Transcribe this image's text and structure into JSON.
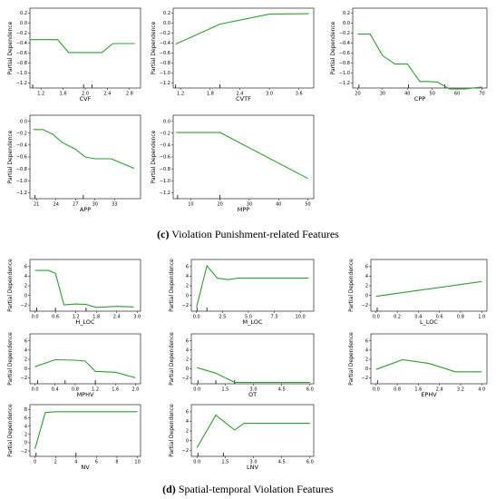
{
  "captions": {
    "c": {
      "letter": "(c)",
      "text": " Violation Punishment-related Features"
    },
    "d": {
      "letter": "(d)",
      "text": " Spatial-temporal Violation Features"
    }
  },
  "colors": {
    "line": "#2ca02c",
    "axis": "#000000",
    "rug": "#000000"
  },
  "chart_data": [
    {
      "id": "cvf",
      "type": "line",
      "xlabel": "CVF",
      "ylabel": "Partial Dependence",
      "xlim": [
        1.0,
        3.0
      ],
      "ylim": [
        -1.3,
        0.3
      ],
      "xticks": [
        1.2,
        1.6,
        2.0,
        2.4,
        2.8
      ],
      "yticks": [
        0.2,
        0.0,
        -0.2,
        -0.4,
        -0.6,
        -0.8,
        -1.0,
        -1.2
      ],
      "x": [
        1.0,
        1.5,
        1.7,
        2.3,
        2.5,
        2.9
      ],
      "y": [
        -0.33,
        -0.33,
        -0.59,
        -0.59,
        -0.41,
        -0.41
      ],
      "rug": [
        1.05,
        1.97,
        2.12
      ]
    },
    {
      "id": "cvtf",
      "type": "line",
      "xlabel": "CVTF",
      "ylabel": "Partial Dependence",
      "xlim": [
        1.05,
        3.9
      ],
      "ylim": [
        -1.3,
        0.3
      ],
      "xticks": [
        1.2,
        1.8,
        2.4,
        3.0,
        3.6
      ],
      "yticks": [
        0.2,
        0.0,
        -0.2,
        -0.4,
        -0.6,
        -0.8,
        -1.0,
        -1.2
      ],
      "x": [
        1.1,
        2.0,
        3.0,
        3.8
      ],
      "y": [
        -0.42,
        -0.02,
        0.18,
        0.19
      ],
      "rug": [
        1.1,
        2.0
      ]
    },
    {
      "id": "cpp",
      "type": "line",
      "xlabel": "CPP",
      "ylabel": "Partial Dependence",
      "xlim": [
        18,
        72
      ],
      "ylim": [
        -1.3,
        0.3
      ],
      "xticks": [
        20,
        30,
        40,
        50,
        60,
        70
      ],
      "yticks": [
        0.2,
        0.0,
        -0.2,
        -0.4,
        -0.6,
        -0.8,
        -1.0,
        -1.2
      ],
      "x": [
        20,
        25,
        30,
        35,
        40,
        45,
        48,
        52,
        57,
        63,
        70
      ],
      "y": [
        -0.22,
        -0.22,
        -0.65,
        -0.82,
        -0.82,
        -1.17,
        -1.17,
        -1.18,
        -1.32,
        -1.32,
        -1.28
      ],
      "rug": [
        20.5,
        40.5,
        55
      ]
    },
    {
      "id": "app",
      "type": "line",
      "xlabel": "APP",
      "ylabel": "Partial Dependence",
      "xlim": [
        20,
        37
      ],
      "ylim": [
        -1.3,
        0.1
      ],
      "xticks": [
        21,
        24,
        27,
        30,
        33
      ],
      "yticks": [
        0.0,
        -0.2,
        -0.4,
        -0.6,
        -0.8,
        -1.0,
        -1.2
      ],
      "x": [
        20.5,
        22,
        23.5,
        25,
        27,
        28.5,
        30,
        31,
        32.5,
        34,
        36
      ],
      "y": [
        -0.14,
        -0.14,
        -0.22,
        -0.36,
        -0.47,
        -0.6,
        -0.63,
        -0.63,
        -0.63,
        -0.7,
        -0.79
      ],
      "rug": [
        20.8,
        28.2
      ]
    },
    {
      "id": "mpp",
      "type": "line",
      "xlabel": "MPP",
      "ylabel": "Partial Dependence",
      "xlim": [
        4,
        52
      ],
      "ylim": [
        -1.3,
        0.1
      ],
      "xticks": [
        10,
        20,
        30,
        40,
        50
      ],
      "yticks": [
        0.0,
        -0.2,
        -0.4,
        -0.6,
        -0.8,
        -1.0,
        -1.2
      ],
      "x": [
        5,
        20,
        50
      ],
      "y": [
        -0.19,
        -0.19,
        -0.96
      ],
      "rug": [
        5.5,
        20
      ]
    },
    {
      "id": "hloc",
      "type": "line",
      "xlabel": "H_LOC",
      "ylabel": "Partial Dependence",
      "xlim": [
        -0.15,
        3.1
      ],
      "ylim": [
        -3.3,
        7.5
      ],
      "xticks": [
        0.0,
        0.6,
        1.2,
        1.8,
        2.4,
        3.0
      ],
      "yticks": [
        6,
        4,
        2,
        0,
        -2
      ],
      "x": [
        0.0,
        0.4,
        0.6,
        0.85,
        1.2,
        1.5,
        1.8,
        2.4,
        2.9
      ],
      "y": [
        5.2,
        5.2,
        4.6,
        -2.0,
        -1.8,
        -1.9,
        -2.5,
        -2.3,
        -2.4
      ],
      "rug": [
        0.05,
        0.6,
        1.5
      ]
    },
    {
      "id": "mloc",
      "type": "line",
      "xlabel": "M_LOC",
      "ylabel": "Partial Dependence",
      "xlim": [
        -0.5,
        11.3
      ],
      "ylim": [
        -3.3,
        7.5
      ],
      "xticks": [
        0.0,
        2.5,
        5.0,
        7.5,
        10.0
      ],
      "yticks": [
        6,
        4,
        2,
        0,
        -2
      ],
      "x": [
        0.0,
        1.0,
        2.0,
        3.0,
        4.0,
        6.0,
        10.8
      ],
      "y": [
        -2.5,
        6.2,
        3.6,
        3.3,
        3.6,
        3.6,
        3.6
      ],
      "rug": [
        0.05,
        1.0
      ]
    },
    {
      "id": "lloc",
      "type": "line",
      "xlabel": "L_LOC",
      "ylabel": "Partial Dependence",
      "xlim": [
        -0.05,
        1.05
      ],
      "ylim": [
        -3.3,
        7.5
      ],
      "xticks": [
        0.0,
        0.2,
        0.4,
        0.6,
        0.8,
        1.0
      ],
      "yticks": [
        6,
        4,
        2,
        0,
        -2
      ],
      "x": [
        0.0,
        1.0
      ],
      "y": [
        -0.2,
        2.9
      ],
      "rug": [
        0.01
      ]
    },
    {
      "id": "mphv",
      "type": "line",
      "xlabel": "MPHV",
      "ylabel": "Partial Dependence",
      "xlim": [
        -0.1,
        2.1
      ],
      "ylim": [
        -3.3,
        7.5
      ],
      "xticks": [
        0.0,
        0.4,
        0.8,
        1.2,
        1.6,
        2.0
      ],
      "yticks": [
        6,
        4,
        2,
        0,
        -2
      ],
      "x": [
        0.0,
        0.4,
        0.8,
        1.0,
        1.2,
        1.6,
        2.0
      ],
      "y": [
        0.4,
        1.9,
        1.8,
        1.6,
        -0.6,
        -0.8,
        -2.0
      ],
      "rug": [
        0.05,
        0.6,
        1.2
      ]
    },
    {
      "id": "ot",
      "type": "line",
      "xlabel": "OT",
      "ylabel": "Partial Dependence",
      "xlim": [
        -0.3,
        6.2
      ],
      "ylim": [
        -3.3,
        7.5
      ],
      "xticks": [
        0.0,
        1.5,
        3.0,
        4.5,
        6.0
      ],
      "yticks": [
        6,
        4,
        2,
        0,
        -2
      ],
      "x": [
        0.0,
        1.0,
        2.0,
        2.5,
        4.0,
        6.0
      ],
      "y": [
        0.2,
        -1.0,
        -3.0,
        -3.0,
        -3.0,
        -3.0
      ],
      "rug": [
        0.05,
        1.0,
        2.0
      ]
    },
    {
      "id": "ephv",
      "type": "line",
      "xlabel": "EPHV",
      "ylabel": "Partial Dependence",
      "xlim": [
        -0.2,
        4.2
      ],
      "ylim": [
        -3.3,
        7.5
      ],
      "xticks": [
        0.0,
        0.8,
        1.6,
        2.4,
        3.2,
        4.0
      ],
      "yticks": [
        6,
        4,
        2,
        0,
        -2
      ],
      "x": [
        0.0,
        1.0,
        2.0,
        3.0,
        4.0
      ],
      "y": [
        -0.2,
        1.9,
        1.1,
        -0.7,
        -0.7
      ],
      "rug": [
        0.05
      ]
    },
    {
      "id": "nv",
      "type": "line",
      "xlabel": "NV",
      "ylabel": "Partial Dependence",
      "xlim": [
        -0.5,
        10.3
      ],
      "ylim": [
        -3.3,
        9.2
      ],
      "xticks": [
        0,
        2,
        4,
        6,
        8,
        10
      ],
      "yticks": [
        8,
        6,
        4,
        2,
        0,
        -2
      ],
      "x": [
        0.0,
        1.0,
        2.0,
        4.0,
        10.0
      ],
      "y": [
        -1.5,
        7.3,
        7.5,
        7.5,
        7.5
      ],
      "rug": [
        0.1,
        4.0
      ]
    },
    {
      "id": "lnv",
      "type": "line",
      "xlabel": "LNV",
      "ylabel": "Partial Dependence",
      "xlim": [
        -0.3,
        6.2
      ],
      "ylim": [
        -3.3,
        7.5
      ],
      "xticks": [
        0.0,
        1.5,
        3.0,
        4.5,
        6.0
      ],
      "yticks": [
        6,
        4,
        2,
        0,
        -2
      ],
      "x": [
        0.0,
        1.0,
        2.0,
        2.5,
        3.0,
        6.0
      ],
      "y": [
        -1.5,
        5.3,
        2.2,
        3.6,
        3.6,
        3.6
      ],
      "rug": [
        0.05,
        1.4
      ]
    }
  ]
}
